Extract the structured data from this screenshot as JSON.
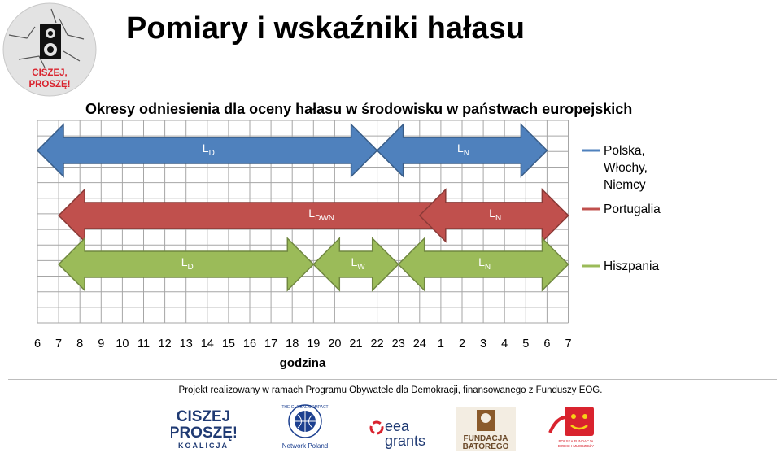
{
  "header": {
    "title": "Pomiary i wskaźniki hałasu",
    "logo_text_1": "CISZEJ,",
    "logo_text_2": "PROSZĘ!"
  },
  "chart_data": {
    "type": "gantt",
    "title": "Okresy odniesienia dla oceny hałasu w środowisku w państwach europejskich",
    "xlabel": "godzina",
    "x_ticks": [
      "6",
      "7",
      "8",
      "9",
      "10",
      "11",
      "12",
      "13",
      "14",
      "15",
      "16",
      "17",
      "18",
      "19",
      "20",
      "21",
      "22",
      "23",
      "24",
      "1",
      "2",
      "3",
      "4",
      "5",
      "6",
      "7"
    ],
    "grid": true,
    "legend_position": "right",
    "series": [
      {
        "name": "Polska, Włochy, Niemcy",
        "color": "#4F81BD",
        "periods": [
          {
            "label": "LD",
            "sub": "D",
            "start": "6",
            "end": "22"
          },
          {
            "label": "LN",
            "sub": "N",
            "start": "22",
            "end": "6"
          }
        ]
      },
      {
        "name": "Portugalia",
        "color": "#C0504D",
        "periods": [
          {
            "label": "LDWN",
            "sub": "DWN",
            "start": "7",
            "end": "7"
          },
          {
            "label": "LN",
            "sub": "N",
            "start": "24",
            "end": "7"
          }
        ]
      },
      {
        "name": "Hiszpania",
        "color": "#9BBB59",
        "periods": [
          {
            "label": "LD",
            "sub": "D",
            "start": "7",
            "end": "19"
          },
          {
            "label": "LW",
            "sub": "W",
            "start": "19",
            "end": "23"
          },
          {
            "label": "LN",
            "sub": "N",
            "start": "23",
            "end": "7"
          }
        ]
      }
    ]
  },
  "footer": {
    "text": "Projekt realizowany w ramach Programu Obywatele dla Demokracji, finansowanego z Funduszy EOG.",
    "sponsors": {
      "koalicja": [
        "CISZEJ",
        "PROSZĘ!",
        "KOALICJA"
      ],
      "global_compact": [
        "THE GLOBAL COMPACT",
        "Network Poland"
      ],
      "eea": [
        "eea",
        "grants"
      ],
      "batory": [
        "FUNDACJA",
        "BATOREGO"
      ],
      "pfdim": [
        "POLSKA FUNDACJA",
        "DZIECI I MŁODZIEŻY"
      ]
    }
  }
}
